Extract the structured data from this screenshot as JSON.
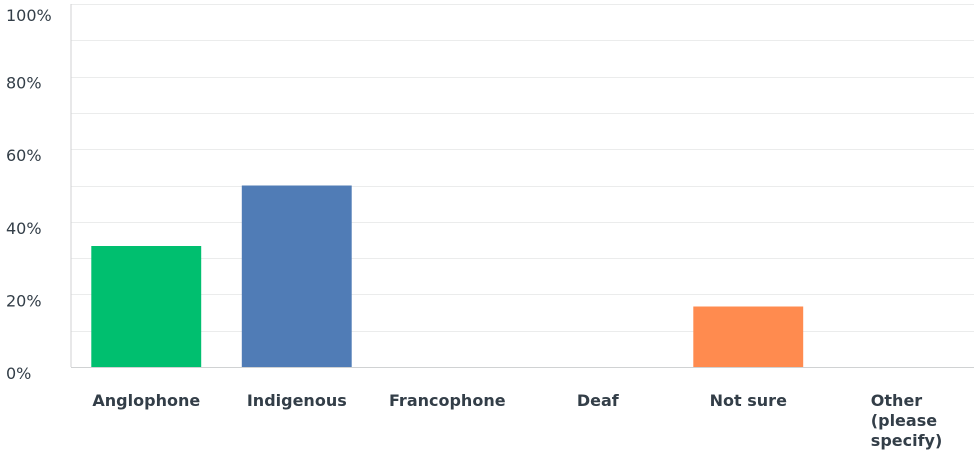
{
  "chart_data": {
    "type": "bar",
    "categories": [
      "Anglophone",
      "Indigenous",
      "Francophone",
      "Deaf",
      "Not sure",
      "Other (please specify)"
    ],
    "category_label_lines": [
      [
        "Anglophone"
      ],
      [
        "Indigenous"
      ],
      [
        "Francophone"
      ],
      [
        "Deaf"
      ],
      [
        "Not sure"
      ],
      [
        "Other",
        "(please",
        "specify)"
      ]
    ],
    "values": [
      33.33,
      50.0,
      0,
      0,
      16.67,
      0
    ],
    "colors": [
      "#00bf6f",
      "#507cb6",
      "#f9be00",
      "#6bc8cd",
      "#ff8b4f",
      "#7f7fff"
    ],
    "ylim": [
      0,
      100
    ],
    "yticks": [
      0,
      20,
      40,
      60,
      80,
      100
    ],
    "ytick_labels": [
      "0%",
      "20%",
      "40%",
      "60%",
      "80%",
      "100%"
    ],
    "grid": true,
    "minor_grid": true,
    "title": "",
    "xlabel": "",
    "ylabel": ""
  }
}
